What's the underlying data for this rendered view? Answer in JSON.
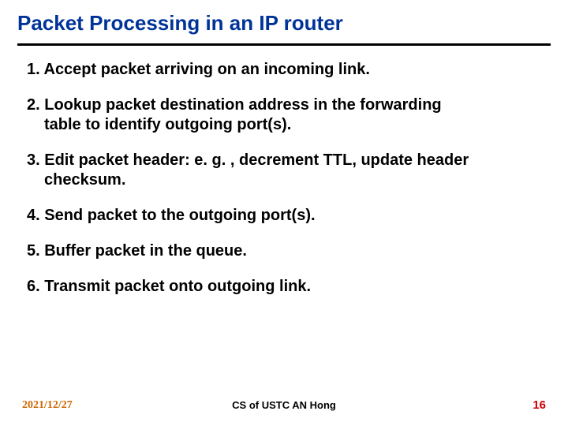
{
  "title": {
    "text": "Packet Processing in an IP router",
    "color": "#003399",
    "fontsize": 26
  },
  "rule": {
    "color": "#000000",
    "thickness": 3
  },
  "body": {
    "color": "#000000",
    "fontsize": 20,
    "items": [
      {
        "num": "1.",
        "first": "Accept packet arriving on an incoming link.",
        "rest": null
      },
      {
        "num": "2.",
        "first": "Lookup packet destination address in the forwarding",
        "rest": "table to identify outgoing port(s)."
      },
      {
        "num": "3.",
        "first": "Edit packet header: e. g. , decrement TTL, update header",
        "rest": "checksum."
      },
      {
        "num": "4.",
        "first": "Send packet to the outgoing port(s).",
        "rest": null
      },
      {
        "num": "5.",
        "first": "Buffer packet in the queue.",
        "rest": null
      },
      {
        "num": "6.",
        "first": "Transmit packet onto outgoing link.",
        "rest": null
      }
    ]
  },
  "footer": {
    "date": "2021/12/27",
    "date_color": "#cc6600",
    "date_fontsize": 14,
    "center": "CS of USTC AN Hong",
    "center_color": "#000000",
    "center_fontsize": 13,
    "page": "16",
    "page_color": "#cc0000",
    "page_fontsize": 15
  }
}
